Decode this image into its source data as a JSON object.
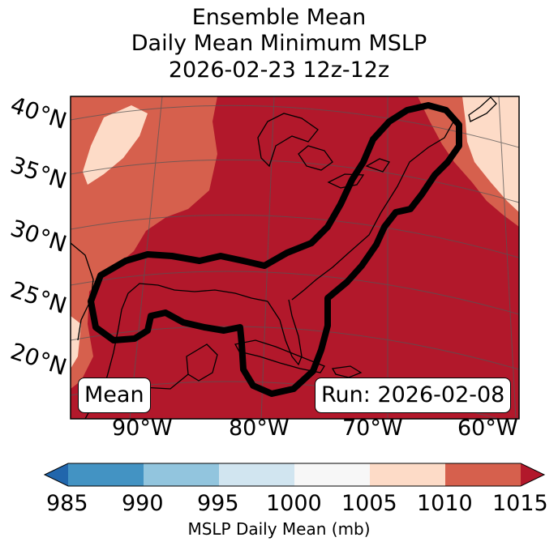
{
  "title": {
    "line1": "Ensemble Mean",
    "line2": "Daily Mean Minimum MSLP",
    "line3": "2026-02-23 12z-12z"
  },
  "map": {
    "lat_labels": [
      "40°N",
      "35°N",
      "30°N",
      "25°N",
      "20°N"
    ],
    "lon_labels": [
      "90°W",
      "80°W",
      "70°W",
      "60°W"
    ],
    "member_label": "Mean",
    "run_label": "Run: 2026-02-08",
    "outline_color": "#000000"
  },
  "colorbar": {
    "ticks": [
      "985",
      "990",
      "995",
      "1000",
      "1005",
      "1010",
      "1015"
    ],
    "label": "MSLP Daily Mean (mb)",
    "colors": {
      "below": "#2166ac",
      "c985_990": "#4393c3",
      "c990_995": "#92c5de",
      "c995_1000": "#d1e5f0",
      "c1000_1005": "#f7f7f7",
      "c1005_1010": "#fddbc7",
      "c1010_1015": "#d6604d",
      "above": "#b2182b"
    }
  }
}
